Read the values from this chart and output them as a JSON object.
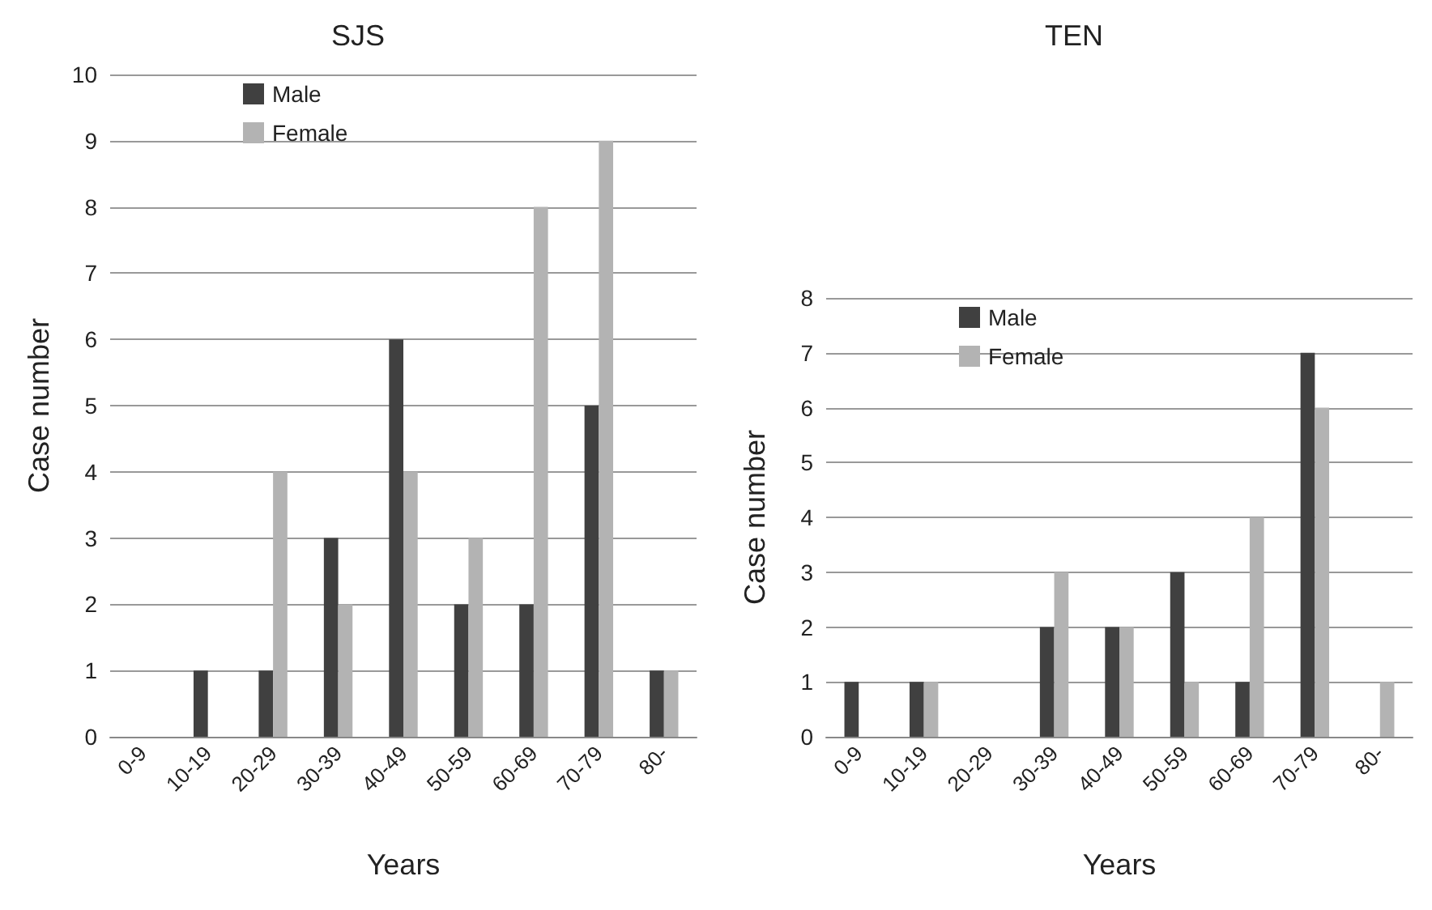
{
  "chart_data": [
    {
      "type": "bar",
      "title": "SJS",
      "xlabel": "Years",
      "ylabel": "Case number",
      "categories": [
        "0-9",
        "10-19",
        "20-29",
        "30-39",
        "40-49",
        "50-59",
        "60-69",
        "70-79",
        "80-"
      ],
      "series": [
        {
          "name": "Male",
          "color": "#404040",
          "values": [
            0,
            1,
            1,
            3,
            6,
            2,
            2,
            5,
            1
          ]
        },
        {
          "name": "Female",
          "color": "#b3b3b3",
          "values": [
            0,
            0,
            4,
            2,
            4,
            3,
            8,
            9,
            1
          ]
        }
      ],
      "ylim": [
        0,
        10
      ],
      "yticks": [
        0,
        1,
        2,
        3,
        4,
        5,
        6,
        7,
        8,
        9,
        10
      ],
      "grid": "y",
      "legend": "top left"
    },
    {
      "type": "bar",
      "title": "TEN",
      "xlabel": "Years",
      "ylabel": "Case number",
      "categories": [
        "0-9",
        "10-19",
        "20-29",
        "30-39",
        "40-49",
        "50-59",
        "60-69",
        "70-79",
        "80-"
      ],
      "series": [
        {
          "name": "Male",
          "color": "#404040",
          "values": [
            1,
            1,
            0,
            2,
            2,
            3,
            1,
            7,
            0
          ]
        },
        {
          "name": "Female",
          "color": "#b3b3b3",
          "values": [
            0,
            1,
            0,
            3,
            2,
            1,
            4,
            6,
            1
          ]
        }
      ],
      "ylim": [
        0,
        8
      ],
      "yticks": [
        0,
        1,
        2,
        3,
        4,
        5,
        6,
        7,
        8
      ],
      "grid": "y",
      "legend": "top left"
    }
  ]
}
